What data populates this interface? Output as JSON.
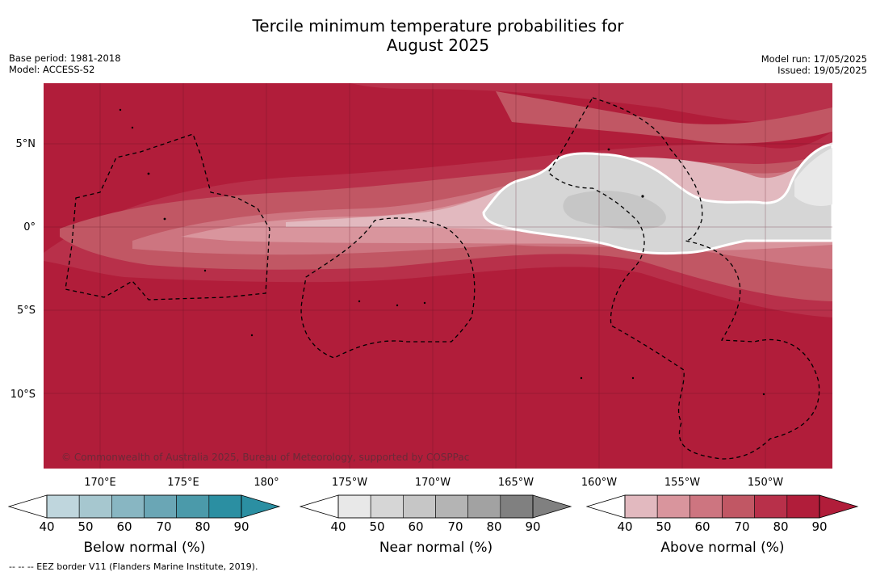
{
  "title_line1": "Tercile minimum temperature probabilities for",
  "title_line2": "August 2025",
  "base_period": "Base period: 1981-2018",
  "model": "Model: ACCESS-S2",
  "model_run": "Model run: 17/05/2025",
  "issued": "Issued: 19/05/2025",
  "lat_labels": [
    "5°N",
    "0°",
    "5°S",
    "10°S"
  ],
  "lon_labels": [
    "170°E",
    "175°E",
    "180°",
    "175°W",
    "170°W",
    "165°W",
    "160°W",
    "155°W",
    "150°W"
  ],
  "credit": "© Commonwealth of Australia 2025, Bureau of Meteorology, supported by COSPPac",
  "footnote": "--  --  -- EEZ border V11 (Flanders Marine Institute, 2019).",
  "colorbars": [
    {
      "label": "Below normal (%)",
      "ticks": [
        "40",
        "50",
        "60",
        "70",
        "80",
        "90"
      ],
      "colors": [
        "#bfd6dd",
        "#a6c7cf",
        "#88b6c2",
        "#6aa6b5",
        "#4b9aaa",
        "#2b8fa2"
      ]
    },
    {
      "label": "Near normal (%)",
      "ticks": [
        "40",
        "50",
        "60",
        "70",
        "80",
        "90"
      ],
      "colors": [
        "#e8e8e8",
        "#d6d6d6",
        "#c6c6c6",
        "#b4b4b4",
        "#a2a2a2",
        "#808080"
      ]
    },
    {
      "label": "Above normal (%)",
      "ticks": [
        "40",
        "50",
        "60",
        "70",
        "80",
        "90"
      ],
      "colors": [
        "#e2b9bf",
        "#d9959d",
        "#cd7580",
        "#c15764",
        "#b8304a",
        "#b11d3a"
      ]
    }
  ],
  "map_colors": {
    "above_90": "#b11d3a",
    "above_80": "#b8304a",
    "above_70": "#c15764",
    "above_60": "#cd7580",
    "above_50": "#d9959d",
    "above_40": "#e2b9bf",
    "near_40": "#e8e8e8",
    "near_50": "#d6d6d6",
    "near_60": "#c6c6c6"
  }
}
